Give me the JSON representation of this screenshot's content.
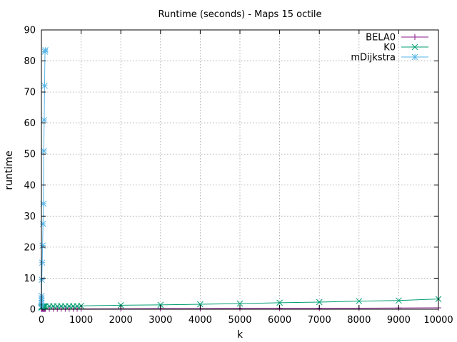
{
  "chart_data": {
    "type": "line",
    "title": "Runtime (seconds) - Maps 15 octile",
    "xlabel": "k",
    "ylabel": "runtime",
    "xlim": [
      0,
      10000
    ],
    "ylim": [
      0,
      90
    ],
    "xticks": [
      0,
      1000,
      2000,
      3000,
      4000,
      5000,
      6000,
      7000,
      8000,
      9000,
      10000
    ],
    "yticks": [
      0,
      10,
      20,
      30,
      40,
      50,
      60,
      70,
      80,
      90
    ],
    "grid": true,
    "legend_position": "top-right",
    "series": [
      {
        "name": "BELA0",
        "color": "#8b1a8b",
        "marker": "plus",
        "x": [
          1,
          2,
          3,
          4,
          5,
          10,
          20,
          30,
          40,
          50,
          60,
          70,
          80,
          90,
          100,
          200,
          300,
          400,
          500,
          600,
          700,
          800,
          900,
          1000,
          2000,
          3000,
          4000,
          5000,
          6000,
          7000,
          8000,
          9000,
          10000
        ],
        "y": [
          0.1,
          0.1,
          0.1,
          0.1,
          0.1,
          0.1,
          0.1,
          0.1,
          0.1,
          0.1,
          0.1,
          0.1,
          0.1,
          0.1,
          0.1,
          0.1,
          0.1,
          0.1,
          0.1,
          0.1,
          0.1,
          0.1,
          0.1,
          0.1,
          0.15,
          0.2,
          0.2,
          0.25,
          0.3,
          0.3,
          0.35,
          0.4,
          0.45
        ]
      },
      {
        "name": "K0",
        "color": "#009e73",
        "marker": "x",
        "x": [
          1,
          2,
          3,
          4,
          5,
          10,
          20,
          30,
          40,
          50,
          60,
          70,
          80,
          90,
          100,
          200,
          300,
          400,
          500,
          600,
          700,
          800,
          900,
          1000,
          2000,
          3000,
          4000,
          5000,
          6000,
          7000,
          8000,
          9000,
          10000
        ],
        "y": [
          0.5,
          0.6,
          0.7,
          0.7,
          0.8,
          0.8,
          0.8,
          0.8,
          0.9,
          0.9,
          0.9,
          0.9,
          0.9,
          0.9,
          0.9,
          1.0,
          1.0,
          1.0,
          1.0,
          1.0,
          1.0,
          1.0,
          1.0,
          1.1,
          1.3,
          1.4,
          1.6,
          1.8,
          2.1,
          2.3,
          2.6,
          2.8,
          3.3
        ]
      },
      {
        "name": "mDijkstra",
        "color": "#56b4e9",
        "marker": "star",
        "x": [
          1,
          2,
          3,
          4,
          5,
          10,
          20,
          30,
          40,
          50,
          60,
          70,
          80,
          90,
          100
        ],
        "y": [
          0.9,
          2.0,
          2.8,
          3.5,
          4.3,
          9.5,
          15.0,
          20.5,
          27.5,
          34.0,
          51.0,
          61.0,
          72.0,
          83.0,
          83.5
        ]
      }
    ]
  }
}
